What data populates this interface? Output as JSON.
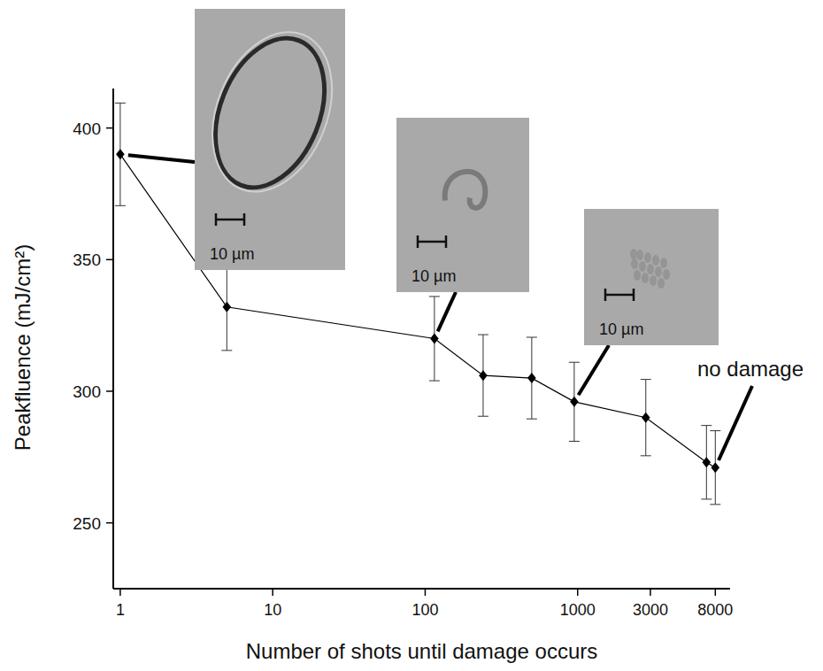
{
  "chart_data": {
    "type": "line",
    "x_label": "Number of shots until damage occurs",
    "y_label": "Peakfluence (mJ/cm²)",
    "x": [
      1,
      5,
      115,
      240,
      500,
      950,
      2800,
      7000,
      8000
    ],
    "values": [
      390,
      332,
      320,
      306,
      305,
      296,
      290,
      273,
      271
    ],
    "errors": [
      19.5,
      16.5,
      16,
      15.5,
      15.5,
      15,
      14.5,
      14,
      14
    ],
    "log": "x",
    "xlim": [
      0.9,
      10000
    ],
    "ylim": [
      225,
      415
    ],
    "xticks": [
      1,
      10,
      100,
      1000,
      3000,
      8000
    ],
    "yticks": [
      250,
      300,
      350,
      400
    ],
    "grid": false,
    "color": "#000000",
    "marker": "diamond",
    "line_style": "solid",
    "annotations": [
      {
        "text": "10 µm",
        "point": 0
      },
      {
        "text": "10 µm",
        "point": 2
      },
      {
        "text": "10 µm",
        "point": 5
      },
      {
        "text": "no damage",
        "point": 8
      }
    ]
  }
}
